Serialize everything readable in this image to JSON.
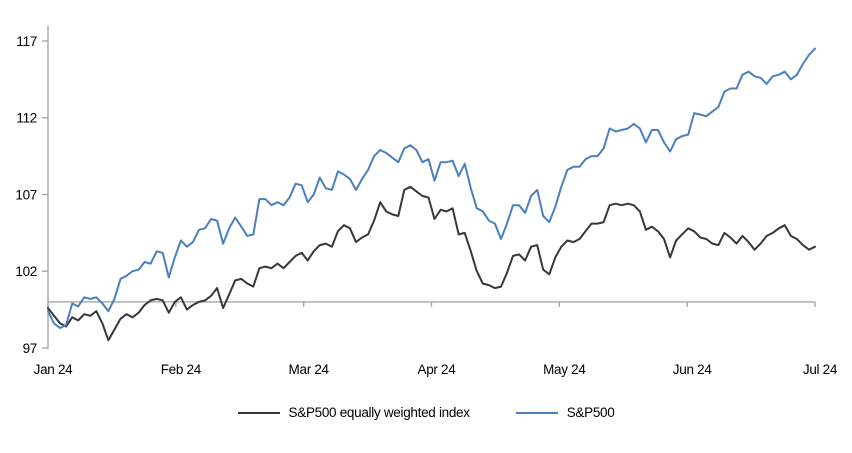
{
  "legend": {
    "items": [
      {
        "label": "S&P500 equally weighted index",
        "color_key": "equal_weight"
      },
      {
        "label": "S&P500",
        "color_key": "sp500"
      }
    ]
  },
  "chart_data": {
    "type": "line",
    "title": "",
    "xlabel": "",
    "ylabel": "",
    "x_tick_labels": [
      "Jan 24",
      "Feb 24",
      "Mar 24",
      "Apr 24",
      "May 24",
      "Jun 24",
      "Jul 24"
    ],
    "y_ticks": [
      97,
      102,
      107,
      112,
      117
    ],
    "ylim": [
      97,
      118
    ],
    "baseline_value": 100,
    "grid": false,
    "legend_position": "bottom",
    "colors": {
      "equal_weight": "#383838",
      "sp500": "#4a80bd",
      "axis": "#a6a6a6",
      "baseline": "#a6a6a6",
      "text": "#000000"
    },
    "series": [
      {
        "name": "S&P500 equally weighted index",
        "color_key": "equal_weight",
        "values": [
          99.6,
          99.1,
          98.6,
          98.4,
          99.0,
          98.8,
          99.2,
          99.1,
          99.4,
          98.6,
          97.5,
          98.2,
          98.9,
          99.2,
          99.0,
          99.3,
          99.8,
          100.1,
          100.2,
          100.1,
          99.3,
          100.0,
          100.3,
          99.5,
          99.8,
          100.0,
          100.1,
          100.4,
          100.9,
          99.6,
          100.5,
          101.4,
          101.5,
          101.2,
          101.0,
          102.2,
          102.3,
          102.2,
          102.5,
          102.2,
          102.6,
          103.0,
          103.2,
          102.7,
          103.3,
          103.7,
          103.8,
          103.6,
          104.6,
          105.0,
          104.8,
          103.9,
          104.2,
          104.4,
          105.3,
          106.5,
          105.9,
          105.7,
          105.6,
          107.3,
          107.5,
          107.2,
          106.9,
          106.8,
          105.4,
          106.0,
          105.9,
          106.1,
          104.4,
          104.5,
          103.3,
          102.0,
          101.2,
          101.1,
          100.9,
          101.0,
          101.9,
          103.0,
          103.1,
          102.7,
          103.6,
          103.7,
          102.1,
          101.8,
          102.9,
          103.6,
          104.0,
          103.9,
          104.1,
          104.6,
          105.1,
          105.1,
          105.2,
          106.3,
          106.4,
          106.3,
          106.4,
          106.3,
          105.9,
          104.7,
          104.9,
          104.6,
          104.1,
          102.9,
          104.0,
          104.4,
          104.8,
          104.6,
          104.2,
          104.1,
          103.8,
          103.7,
          104.5,
          104.2,
          103.8,
          104.3,
          103.9,
          103.4,
          103.8,
          104.3,
          104.5,
          104.8,
          105.0,
          104.3,
          104.1,
          103.7,
          103.4,
          103.6
        ]
      },
      {
        "name": "S&P500",
        "color_key": "sp500",
        "values": [
          99.4,
          98.6,
          98.3,
          98.5,
          99.9,
          99.7,
          100.3,
          100.2,
          100.3,
          99.9,
          99.4,
          100.2,
          101.5,
          101.7,
          102.0,
          102.1,
          102.6,
          102.5,
          103.3,
          103.2,
          101.6,
          102.9,
          104.0,
          103.6,
          103.9,
          104.7,
          104.8,
          105.4,
          105.3,
          103.8,
          104.8,
          105.5,
          104.9,
          104.3,
          104.4,
          106.7,
          106.7,
          106.3,
          106.5,
          106.3,
          106.8,
          107.7,
          107.6,
          106.5,
          107.0,
          108.1,
          107.4,
          107.3,
          108.5,
          108.3,
          108.0,
          107.3,
          108.0,
          108.6,
          109.5,
          109.9,
          109.7,
          109.4,
          109.1,
          110.0,
          110.2,
          109.9,
          109.1,
          109.3,
          107.9,
          109.1,
          109.1,
          109.2,
          108.2,
          109.0,
          107.4,
          106.1,
          105.9,
          105.3,
          105.1,
          104.1,
          105.1,
          106.3,
          106.3,
          105.8,
          106.9,
          107.3,
          105.6,
          105.2,
          106.2,
          107.5,
          108.6,
          108.8,
          108.8,
          109.3,
          109.5,
          109.5,
          110.0,
          111.3,
          111.1,
          111.2,
          111.3,
          111.6,
          111.3,
          110.4,
          111.2,
          111.2,
          110.4,
          109.8,
          110.6,
          110.8,
          110.9,
          112.3,
          112.2,
          112.1,
          112.4,
          112.7,
          113.7,
          113.9,
          113.9,
          114.8,
          115.0,
          114.7,
          114.6,
          114.2,
          114.7,
          114.8,
          115.0,
          114.5,
          114.8,
          115.5,
          116.1,
          116.5
        ]
      }
    ]
  }
}
